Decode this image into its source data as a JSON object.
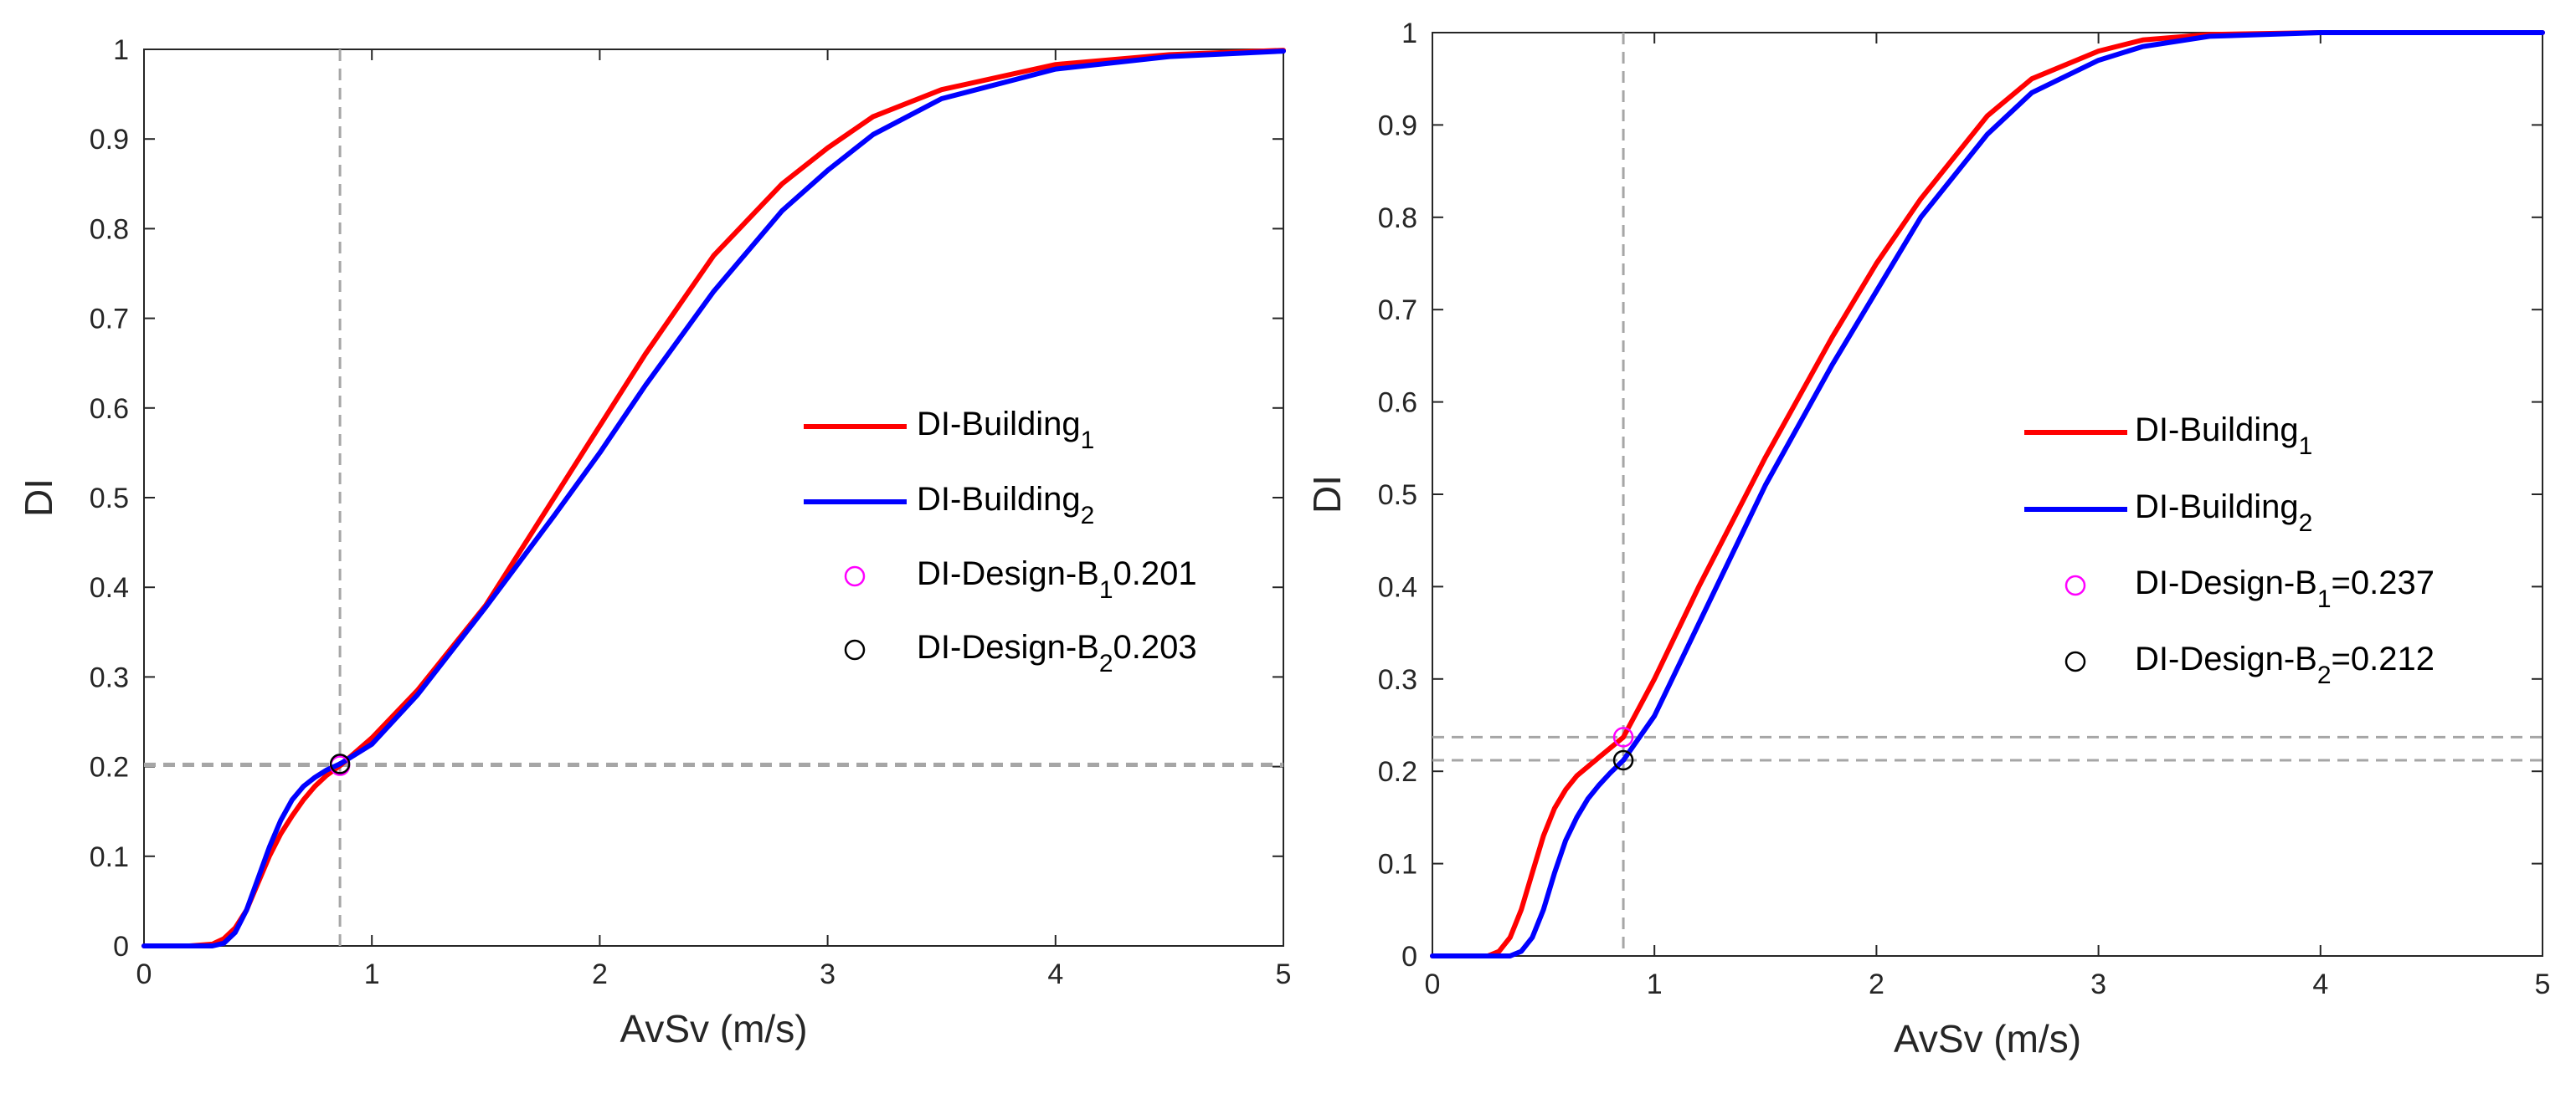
{
  "chart_data": [
    {
      "type": "line",
      "xlabel": "AvSv (m/s)",
      "ylabel": "DI",
      "xlim": [
        0,
        5
      ],
      "ylim": [
        0,
        1
      ],
      "xticks": [
        "0",
        "1",
        "2",
        "3",
        "4",
        "5"
      ],
      "yticks": [
        "0",
        "0.1",
        "0.2",
        "0.3",
        "0.4",
        "0.5",
        "0.6",
        "0.7",
        "0.8",
        "0.9",
        "1"
      ],
      "colors": {
        "building1": "#ff0000",
        "building2": "#0000ff",
        "design1": "#ff00ff",
        "design2": "#000000",
        "ref": "#a6a6a6"
      },
      "series": [
        {
          "name": "DI-Building1",
          "x": [
            0,
            0.2,
            0.3,
            0.35,
            0.4,
            0.45,
            0.5,
            0.55,
            0.6,
            0.65,
            0.7,
            0.75,
            0.8,
            0.86,
            1.0,
            1.2,
            1.5,
            1.8,
            2.0,
            2.2,
            2.5,
            2.8,
            3.0,
            3.2,
            3.5,
            4.0,
            4.5,
            5.0
          ],
          "y": [
            0,
            0,
            0.002,
            0.008,
            0.02,
            0.04,
            0.07,
            0.1,
            0.125,
            0.145,
            0.163,
            0.178,
            0.19,
            0.201,
            0.232,
            0.285,
            0.38,
            0.5,
            0.58,
            0.66,
            0.77,
            0.85,
            0.89,
            0.925,
            0.955,
            0.983,
            0.994,
            0.999
          ]
        },
        {
          "name": "DI-Building2",
          "x": [
            0,
            0.3,
            0.35,
            0.4,
            0.45,
            0.5,
            0.55,
            0.6,
            0.65,
            0.7,
            0.75,
            0.8,
            0.86,
            1.0,
            1.2,
            1.5,
            1.8,
            2.0,
            2.2,
            2.5,
            2.8,
            3.0,
            3.2,
            3.5,
            4.0,
            4.5,
            5.0
          ],
          "y": [
            0,
            0,
            0.003,
            0.015,
            0.04,
            0.075,
            0.11,
            0.14,
            0.163,
            0.178,
            0.188,
            0.196,
            0.203,
            0.225,
            0.28,
            0.378,
            0.48,
            0.55,
            0.625,
            0.73,
            0.82,
            0.865,
            0.905,
            0.945,
            0.978,
            0.992,
            0.998
          ]
        }
      ],
      "markers": [
        {
          "name": "DI-Design-B1",
          "x": 0.86,
          "y": 0.201
        },
        {
          "name": "DI-Design-B2",
          "x": 0.86,
          "y": 0.203
        }
      ],
      "vline": 0.86,
      "hlines": [
        0.201,
        0.203
      ],
      "legend": {
        "position": "center-right",
        "entries": [
          {
            "kind": "line",
            "series": "building1",
            "base": "DI-Building",
            "sub": "1",
            "tail": ""
          },
          {
            "kind": "line",
            "series": "building2",
            "base": "DI-Building",
            "sub": "2",
            "tail": ""
          },
          {
            "kind": "marker",
            "series": "design1",
            "base": "DI-Design-B",
            "sub": "1",
            "tail": "0.201"
          },
          {
            "kind": "marker",
            "series": "design2",
            "base": "DI-Design-B",
            "sub": "2",
            "tail": "0.203"
          }
        ]
      }
    },
    {
      "type": "line",
      "xlabel": "AvSv (m/s)",
      "ylabel": "DI",
      "xlim": [
        0,
        5
      ],
      "ylim": [
        0,
        1
      ],
      "xticks": [
        "0",
        "1",
        "2",
        "3",
        "4",
        "5"
      ],
      "yticks": [
        "0",
        "0.1",
        "0.2",
        "0.3",
        "0.4",
        "0.5",
        "0.6",
        "0.7",
        "0.8",
        "0.9",
        "1"
      ],
      "colors": {
        "building1": "#ff0000",
        "building2": "#0000ff",
        "design1": "#ff00ff",
        "design2": "#000000",
        "ref": "#a6a6a6"
      },
      "series": [
        {
          "name": "DI-Building1",
          "x": [
            0,
            0.25,
            0.3,
            0.35,
            0.4,
            0.45,
            0.5,
            0.55,
            0.6,
            0.65,
            0.7,
            0.75,
            0.8,
            0.86,
            1.0,
            1.2,
            1.5,
            1.8,
            2.0,
            2.2,
            2.5,
            2.7,
            3.0,
            3.2,
            3.5,
            4.0,
            4.5,
            5.0
          ],
          "y": [
            0,
            0,
            0.005,
            0.02,
            0.05,
            0.09,
            0.13,
            0.16,
            0.18,
            0.195,
            0.205,
            0.215,
            0.225,
            0.237,
            0.3,
            0.4,
            0.54,
            0.67,
            0.75,
            0.82,
            0.91,
            0.95,
            0.98,
            0.992,
            0.998,
            1.0,
            1.0,
            1.0
          ]
        },
        {
          "name": "DI-Building2",
          "x": [
            0,
            0.35,
            0.4,
            0.45,
            0.5,
            0.55,
            0.6,
            0.65,
            0.7,
            0.75,
            0.8,
            0.86,
            1.0,
            1.2,
            1.5,
            1.8,
            2.0,
            2.2,
            2.5,
            2.7,
            3.0,
            3.2,
            3.5,
            4.0,
            4.5,
            5.0
          ],
          "y": [
            0,
            0,
            0.005,
            0.02,
            0.05,
            0.09,
            0.125,
            0.15,
            0.17,
            0.185,
            0.198,
            0.212,
            0.26,
            0.36,
            0.51,
            0.64,
            0.72,
            0.8,
            0.89,
            0.935,
            0.97,
            0.985,
            0.996,
            1.0,
            1.0,
            1.0
          ]
        }
      ],
      "markers": [
        {
          "name": "DI-Design-B1",
          "x": 0.86,
          "y": 0.237
        },
        {
          "name": "DI-Design-B2",
          "x": 0.86,
          "y": 0.212
        }
      ],
      "vline": 0.86,
      "hlines": [
        0.237,
        0.212
      ],
      "legend": {
        "position": "center-right",
        "entries": [
          {
            "kind": "line",
            "series": "building1",
            "base": "DI-Building",
            "sub": "1",
            "tail": ""
          },
          {
            "kind": "line",
            "series": "building2",
            "base": "DI-Building",
            "sub": "2",
            "tail": ""
          },
          {
            "kind": "marker",
            "series": "design1",
            "base": "DI-Design-B",
            "sub": "1",
            "tail": "=0.237"
          },
          {
            "kind": "marker",
            "series": "design2",
            "base": "DI-Design-B",
            "sub": "2",
            "tail": "=0.212"
          }
        ]
      }
    }
  ]
}
